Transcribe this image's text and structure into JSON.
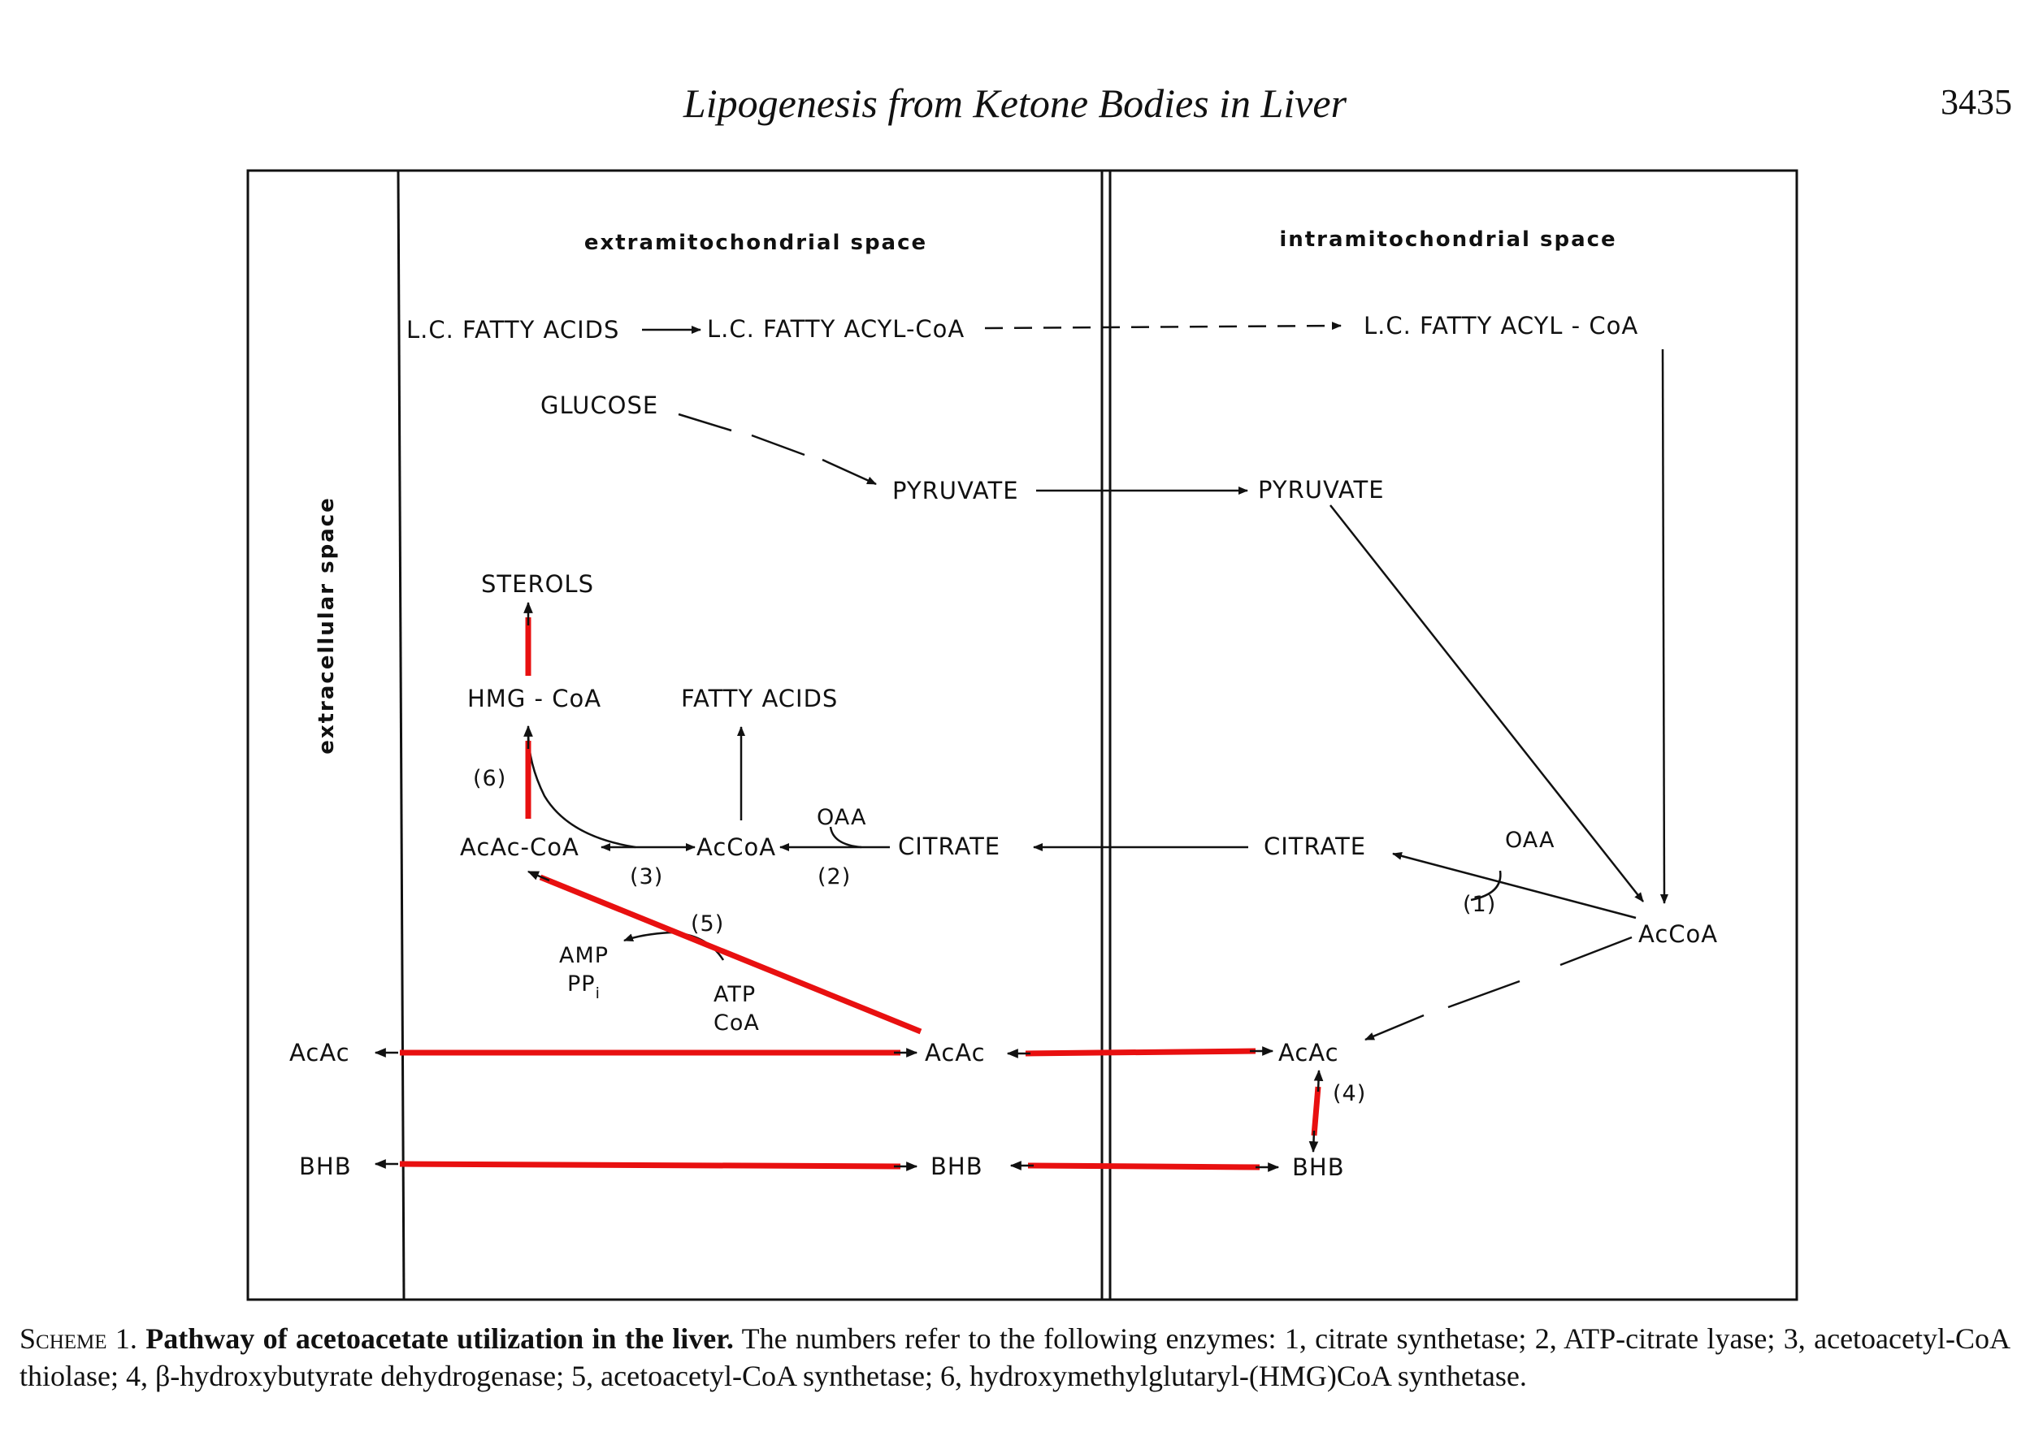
{
  "header": {
    "title": "Lipogenesis from Ketone Bodies in Liver",
    "page_number": "3435"
  },
  "spaces": {
    "extracellular": "extracellular space",
    "extramitochondrial": "extramitochondrial space",
    "intramitochondrial": "intramitochondrial space"
  },
  "nodes": {
    "lc_fatty_acids": "L.C. FATTY ACIDS",
    "lc_fatty_acyl_coa_extra": "L.C. FATTY ACYL-CoA",
    "lc_fatty_acyl_coa_intra": "L.C. FATTY ACYL - CoA",
    "glucose": "GLUCOSE",
    "pyruvate_extra": "PYRUVATE",
    "pyruvate_intra": "PYRUVATE",
    "sterols": "STEROLS",
    "hmg_coa": "HMG - CoA",
    "fatty_acids": "FATTY ACIDS",
    "acac_coa": "AcAc-CoA",
    "accoa_extra": "AcCoA",
    "oaa_extra": "OAA",
    "citrate_extra": "CITRATE",
    "citrate_intra": "CITRATE",
    "oaa_intra": "OAA",
    "accoa_intra": "AcCoA",
    "amp": "AMP",
    "ppi_base": "PP",
    "ppi_sub": "i",
    "atp": "ATP",
    "coa": "CoA",
    "acac_extracell": "AcAc",
    "acac_extra": "AcAc",
    "acac_intra": "AcAc",
    "bhb_extracell": "BHB",
    "bhb_extra": "BHB",
    "bhb_intra": "BHB"
  },
  "enzyme_labels": {
    "e1": "(1)",
    "e2": "(2)",
    "e3": "(3)",
    "e4": "(4)",
    "e5": "(5)",
    "e6": "(6)"
  },
  "colors": {
    "highlight": "#e81010",
    "ink": "#111111"
  },
  "caption": {
    "scheme": "Scheme 1.",
    "title": "Pathway of acetoacetate utilization in the liver.",
    "text": "The numbers refer to the following enzymes: 1, citrate synthetase; 2, ATP-citrate lyase; 3, acetoacetyl-CoA thiolase; 4, β-hydroxybutyrate dehydrogenase; 5, acetoacetyl-CoA synthetase; 6, hydroxymethylglutaryl-(HMG)CoA synthetase."
  }
}
